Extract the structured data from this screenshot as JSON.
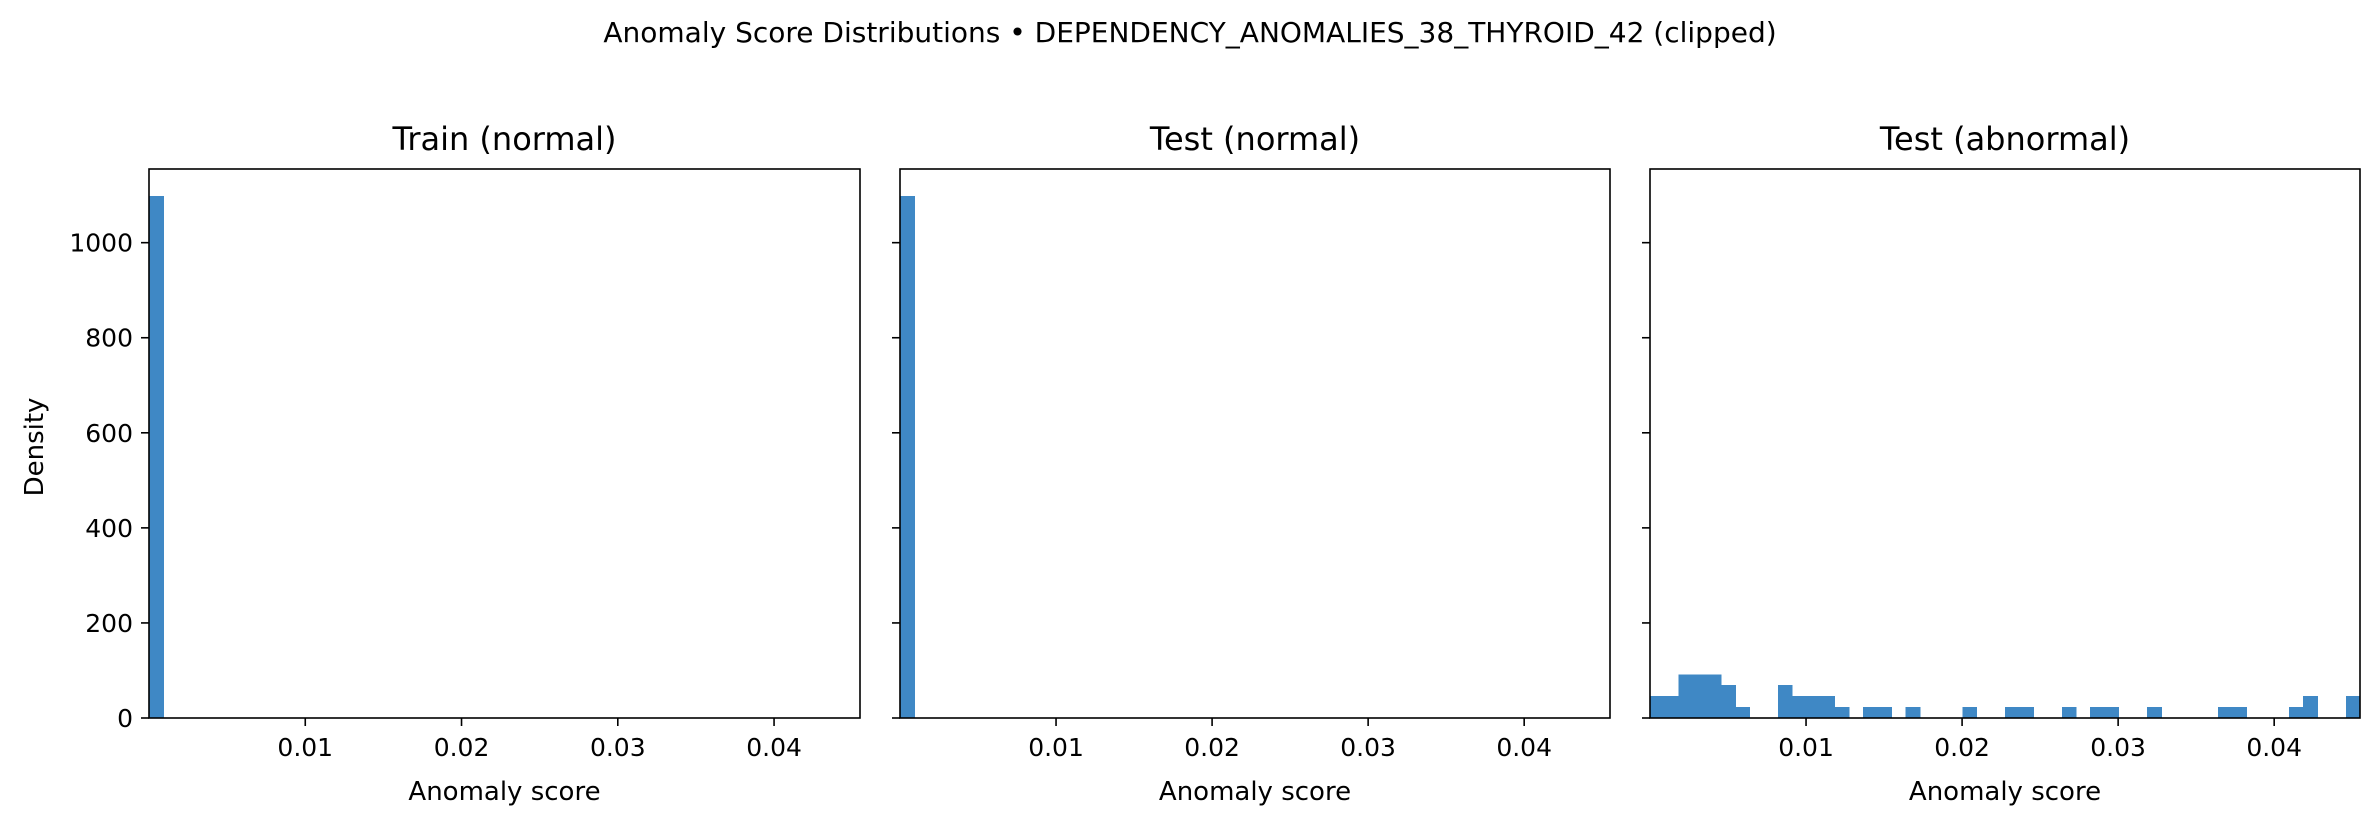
{
  "chart_data": {
    "suptitle": "Anomaly Score Distributions • DEPENDENCY_ANOMALIES_38_THYROID_42 (clipped)",
    "type": "histogram",
    "bar_color": "#3f88c5",
    "shared_y": true,
    "ylabel": "Density",
    "xlim": [
      0.0,
      0.0455
    ],
    "ylim": [
      0,
      1155
    ],
    "bin_width": 0.00091,
    "xticks": [
      0.01,
      0.02,
      0.03,
      0.04
    ],
    "xtick_labels": [
      "0.01",
      "0.02",
      "0.03",
      "0.04"
    ],
    "yticks": [
      0,
      200,
      400,
      600,
      800,
      1000
    ],
    "ytick_labels": [
      "0",
      "200",
      "400",
      "600",
      "800",
      "1000"
    ],
    "panels": [
      {
        "title": "Train (normal)",
        "xlabel": "Anomaly score",
        "bins": [
          {
            "x0": 0.0,
            "x1": 0.00091,
            "density": 1098
          }
        ]
      },
      {
        "title": "Test (normal)",
        "xlabel": "Anomaly score",
        "bins": [
          {
            "x0": 0.0,
            "x1": 0.00091,
            "density": 1098
          }
        ]
      },
      {
        "title": "Test (abnormal)",
        "xlabel": "Anomaly score",
        "bins": [
          {
            "x0": 0.0,
            "x1": 0.00091,
            "density": 46
          },
          {
            "x0": 0.00091,
            "x1": 0.00182,
            "density": 46
          },
          {
            "x0": 0.00182,
            "x1": 0.00273,
            "density": 92
          },
          {
            "x0": 0.00273,
            "x1": 0.00364,
            "density": 92
          },
          {
            "x0": 0.00364,
            "x1": 0.00455,
            "density": 92
          },
          {
            "x0": 0.00455,
            "x1": 0.00546,
            "density": 69
          },
          {
            "x0": 0.00546,
            "x1": 0.00637,
            "density": 23
          },
          {
            "x0": 0.00819,
            "x1": 0.0091,
            "density": 69
          },
          {
            "x0": 0.0091,
            "x1": 0.01001,
            "density": 46
          },
          {
            "x0": 0.01001,
            "x1": 0.01092,
            "density": 46
          },
          {
            "x0": 0.01092,
            "x1": 0.01183,
            "density": 46
          },
          {
            "x0": 0.01183,
            "x1": 0.01274,
            "density": 23
          },
          {
            "x0": 0.01365,
            "x1": 0.01456,
            "density": 23
          },
          {
            "x0": 0.01456,
            "x1": 0.01547,
            "density": 23
          },
          {
            "x0": 0.01638,
            "x1": 0.01729,
            "density": 23
          },
          {
            "x0": 0.02002,
            "x1": 0.02093,
            "density": 23
          },
          {
            "x0": 0.02275,
            "x1": 0.02366,
            "density": 23
          },
          {
            "x0": 0.02366,
            "x1": 0.02457,
            "density": 23
          },
          {
            "x0": 0.02639,
            "x1": 0.0273,
            "density": 23
          },
          {
            "x0": 0.02821,
            "x1": 0.02912,
            "density": 23
          },
          {
            "x0": 0.02912,
            "x1": 0.03003,
            "density": 23
          },
          {
            "x0": 0.03185,
            "x1": 0.03276,
            "density": 23
          },
          {
            "x0": 0.0364,
            "x1": 0.03731,
            "density": 23
          },
          {
            "x0": 0.03731,
            "x1": 0.03822,
            "density": 23
          },
          {
            "x0": 0.04095,
            "x1": 0.04186,
            "density": 23
          },
          {
            "x0": 0.04186,
            "x1": 0.04277,
            "density": 46
          },
          {
            "x0": 0.04459,
            "x1": 0.0455,
            "density": 46
          }
        ]
      }
    ]
  }
}
